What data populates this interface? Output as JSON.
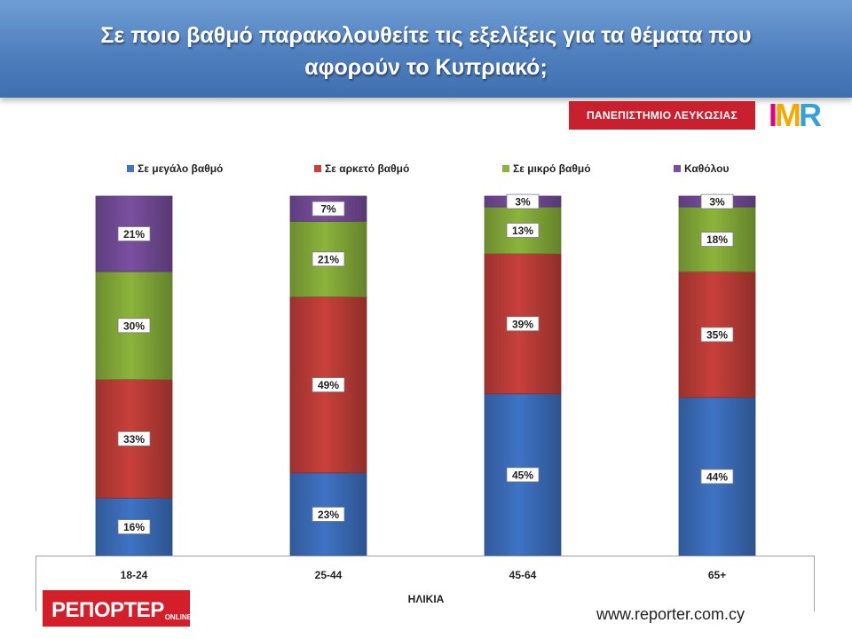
{
  "header": {
    "title": "Σε ποιο βαθμό παρακολουθείτε τις εξελίξεις  για τα θέματα που\nαφορούν το Κυπριακό;"
  },
  "badges": {
    "university": "ΠΑΝΕΠΙΣΤΗΜΙΟ ΛΕΥΚΩΣΙΑΣ",
    "imr": "IMR"
  },
  "footer": {
    "reporter_logo_main": "ΡΕΠΟΡΤΕΡ",
    "reporter_logo_sub": "ONLINE",
    "website": "www.reporter.com.cy"
  },
  "colors": {
    "header_bg": "#4f7fbe",
    "university_badge": "#c8202f",
    "reporter_logo": "#d41e2a"
  },
  "chart_data": {
    "type": "bar",
    "stacked": true,
    "percent_stacked": true,
    "categories": [
      "18-24",
      "25-44",
      "45-64",
      "65+"
    ],
    "xlabel": "ΗΛΙΚΙΑ",
    "ylabel": "",
    "ylim": [
      0,
      100
    ],
    "grid": false,
    "legend_position": "top",
    "series": [
      {
        "name": "Σε μεγάλο βαθμό",
        "color": "#3f73c5",
        "values": [
          16,
          23,
          45,
          44
        ],
        "labels": [
          "16%",
          "23%",
          "45%",
          "44%"
        ]
      },
      {
        "name": "Σε αρκετό βαθμό",
        "color": "#c8403b",
        "values": [
          33,
          49,
          39,
          35
        ],
        "labels": [
          "33%",
          "49%",
          "39%",
          "35%"
        ]
      },
      {
        "name": "Σε μικρό βαθμό",
        "color": "#8cb43c",
        "values": [
          30,
          21,
          13,
          18
        ],
        "labels": [
          "30%",
          "21%",
          "13%",
          "18%"
        ]
      },
      {
        "name": "Καθόλου",
        "color": "#7a4fa0",
        "values": [
          21,
          7,
          3,
          3
        ],
        "labels": [
          "21%",
          "7%",
          "3%",
          "3%"
        ]
      }
    ]
  }
}
